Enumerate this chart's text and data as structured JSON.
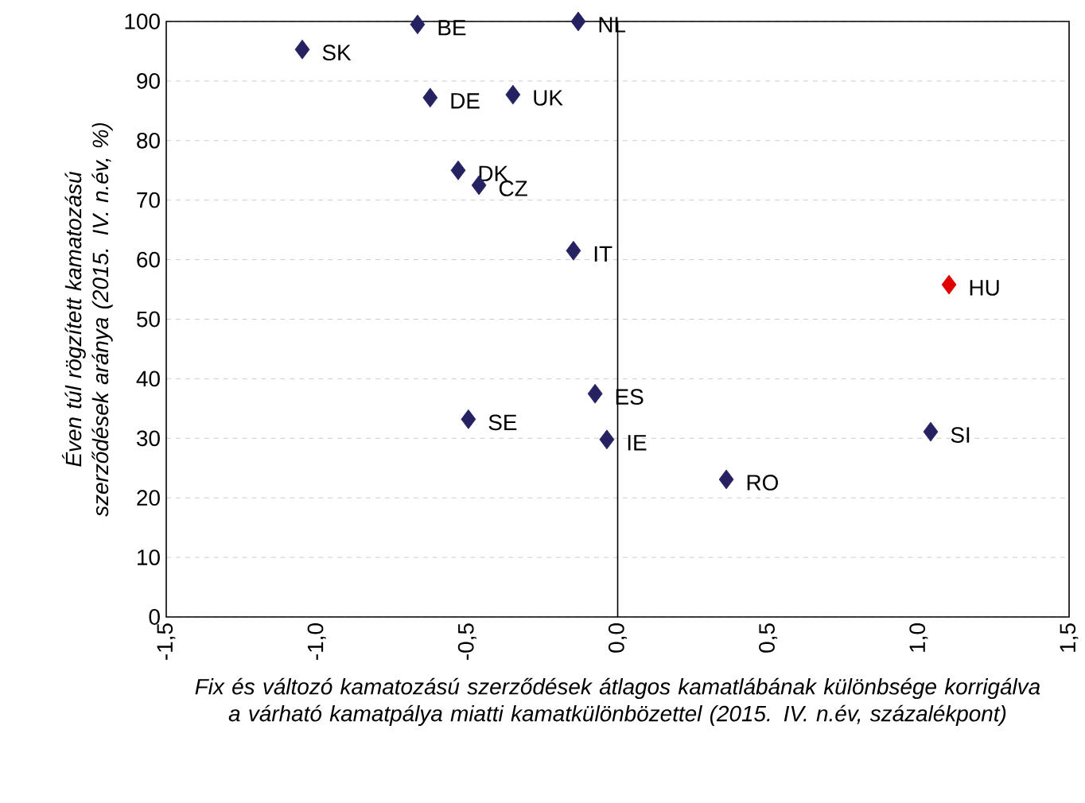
{
  "chart_data": {
    "type": "scatter",
    "xlabel": "Fix és változó kamatozású szerződések átlagos kamatlábának különbsége korrigálva a várható kamatpálya miatti kamatkülönbözettel (2015. IV. n.év, százalékpont)",
    "ylabel": "Éven túl rögzített kamatozású szerződések aránya (2015. IV. n.év, %)",
    "x": [
      -1.048,
      -0.665,
      -0.131,
      -0.623,
      -0.348,
      -0.53,
      -0.461,
      -0.147,
      1.101,
      -0.075,
      -0.496,
      -0.036,
      1.04,
      0.361
    ],
    "values": [
      95.3,
      99.5,
      100,
      87.2,
      87.7,
      75.0,
      72.5,
      61.5,
      55.8,
      37.5,
      33.2,
      29.8,
      31.1,
      23.1
    ],
    "colors": [
      "#262262",
      "#262262",
      "#262262",
      "#262262",
      "#262262",
      "#262262",
      "#262262",
      "#262262",
      "#e00000",
      "#262262",
      "#262262",
      "#262262",
      "#262262",
      "#262262"
    ],
    "marker": "diamond",
    "grid": "y",
    "xlim": [
      -1.5,
      1.5
    ],
    "xticks": [
      {
        "value": -1.5,
        "label": "-1,5"
      },
      {
        "value": -1.0,
        "label": "-1,0"
      },
      {
        "value": -0.5,
        "label": "-0,5"
      },
      {
        "value": 0,
        "label": "0,0"
      },
      {
        "value": 0.5,
        "label": "0,5"
      },
      {
        "value": 1.0,
        "label": "1,0"
      },
      {
        "value": 1.5,
        "label": "1,5"
      }
    ],
    "ylim": [
      0,
      100
    ],
    "yticks": [
      0,
      10,
      20,
      30,
      40,
      50,
      60,
      70,
      80,
      90,
      100
    ],
    "ref_lines": [
      {
        "axis": "x",
        "value": 0,
        "color": "#000000"
      }
    ],
    "annotations": [
      {
        "text": "SK",
        "x": -1.048,
        "y": 95.3
      },
      {
        "text": "BE",
        "x": -0.665,
        "y": 99.5
      },
      {
        "text": "NL",
        "x": -0.131,
        "y": 100
      },
      {
        "text": "DE",
        "x": -0.623,
        "y": 87.2
      },
      {
        "text": "UK",
        "x": -0.348,
        "y": 87.7
      },
      {
        "text": "DK",
        "x": -0.53,
        "y": 75.0
      },
      {
        "text": "CZ",
        "x": -0.461,
        "y": 72.5
      },
      {
        "text": "IT",
        "x": -0.147,
        "y": 61.5
      },
      {
        "text": "HU",
        "x": 1.101,
        "y": 55.8
      },
      {
        "text": "ES",
        "x": -0.075,
        "y": 37.5
      },
      {
        "text": "SE",
        "x": -0.496,
        "y": 33.2
      },
      {
        "text": "IE",
        "x": -0.036,
        "y": 29.8
      },
      {
        "text": "SI",
        "x": 1.04,
        "y": 31.1
      },
      {
        "text": "RO",
        "x": 0.361,
        "y": 23.1
      }
    ]
  }
}
